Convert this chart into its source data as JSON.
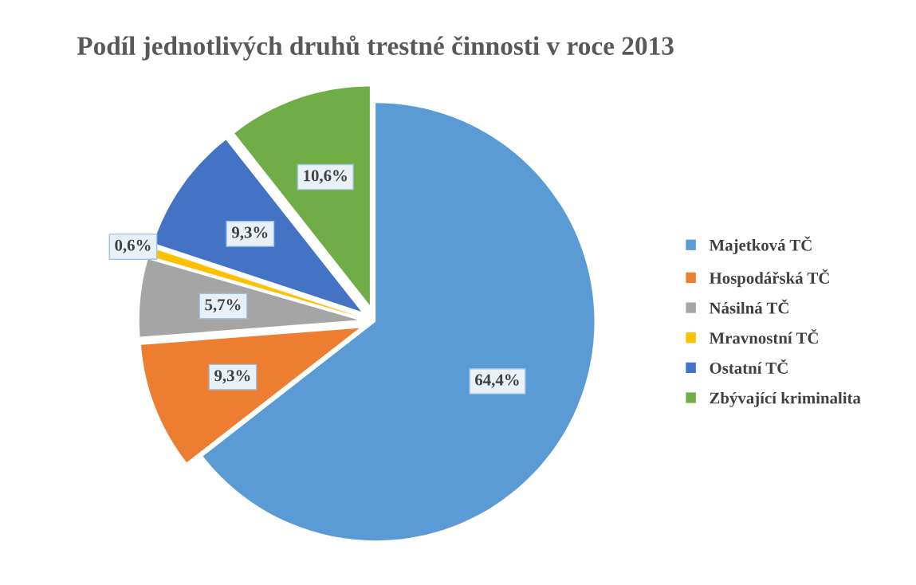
{
  "chart_data": {
    "type": "pie",
    "title": "Podíl jednotlivých druhů trestné činnosti v roce 2013",
    "categories": [
      "Majetková TČ",
      "Hospodářská TČ",
      "Násilná TČ",
      "Mravnostní TČ",
      "Ostatní TČ",
      "Zbývající kriminalita"
    ],
    "values": [
      64.4,
      9.3,
      5.7,
      0.6,
      9.3,
      10.6
    ],
    "value_labels": [
      "64,4%",
      "9,3%",
      "5,7%",
      "0,6%",
      "9,3%",
      "10,6%"
    ],
    "colors": [
      "#5b9bd5",
      "#ed7d31",
      "#a5a5a5",
      "#ffc000",
      "#4472c4",
      "#70ad47"
    ],
    "legend": "right"
  }
}
